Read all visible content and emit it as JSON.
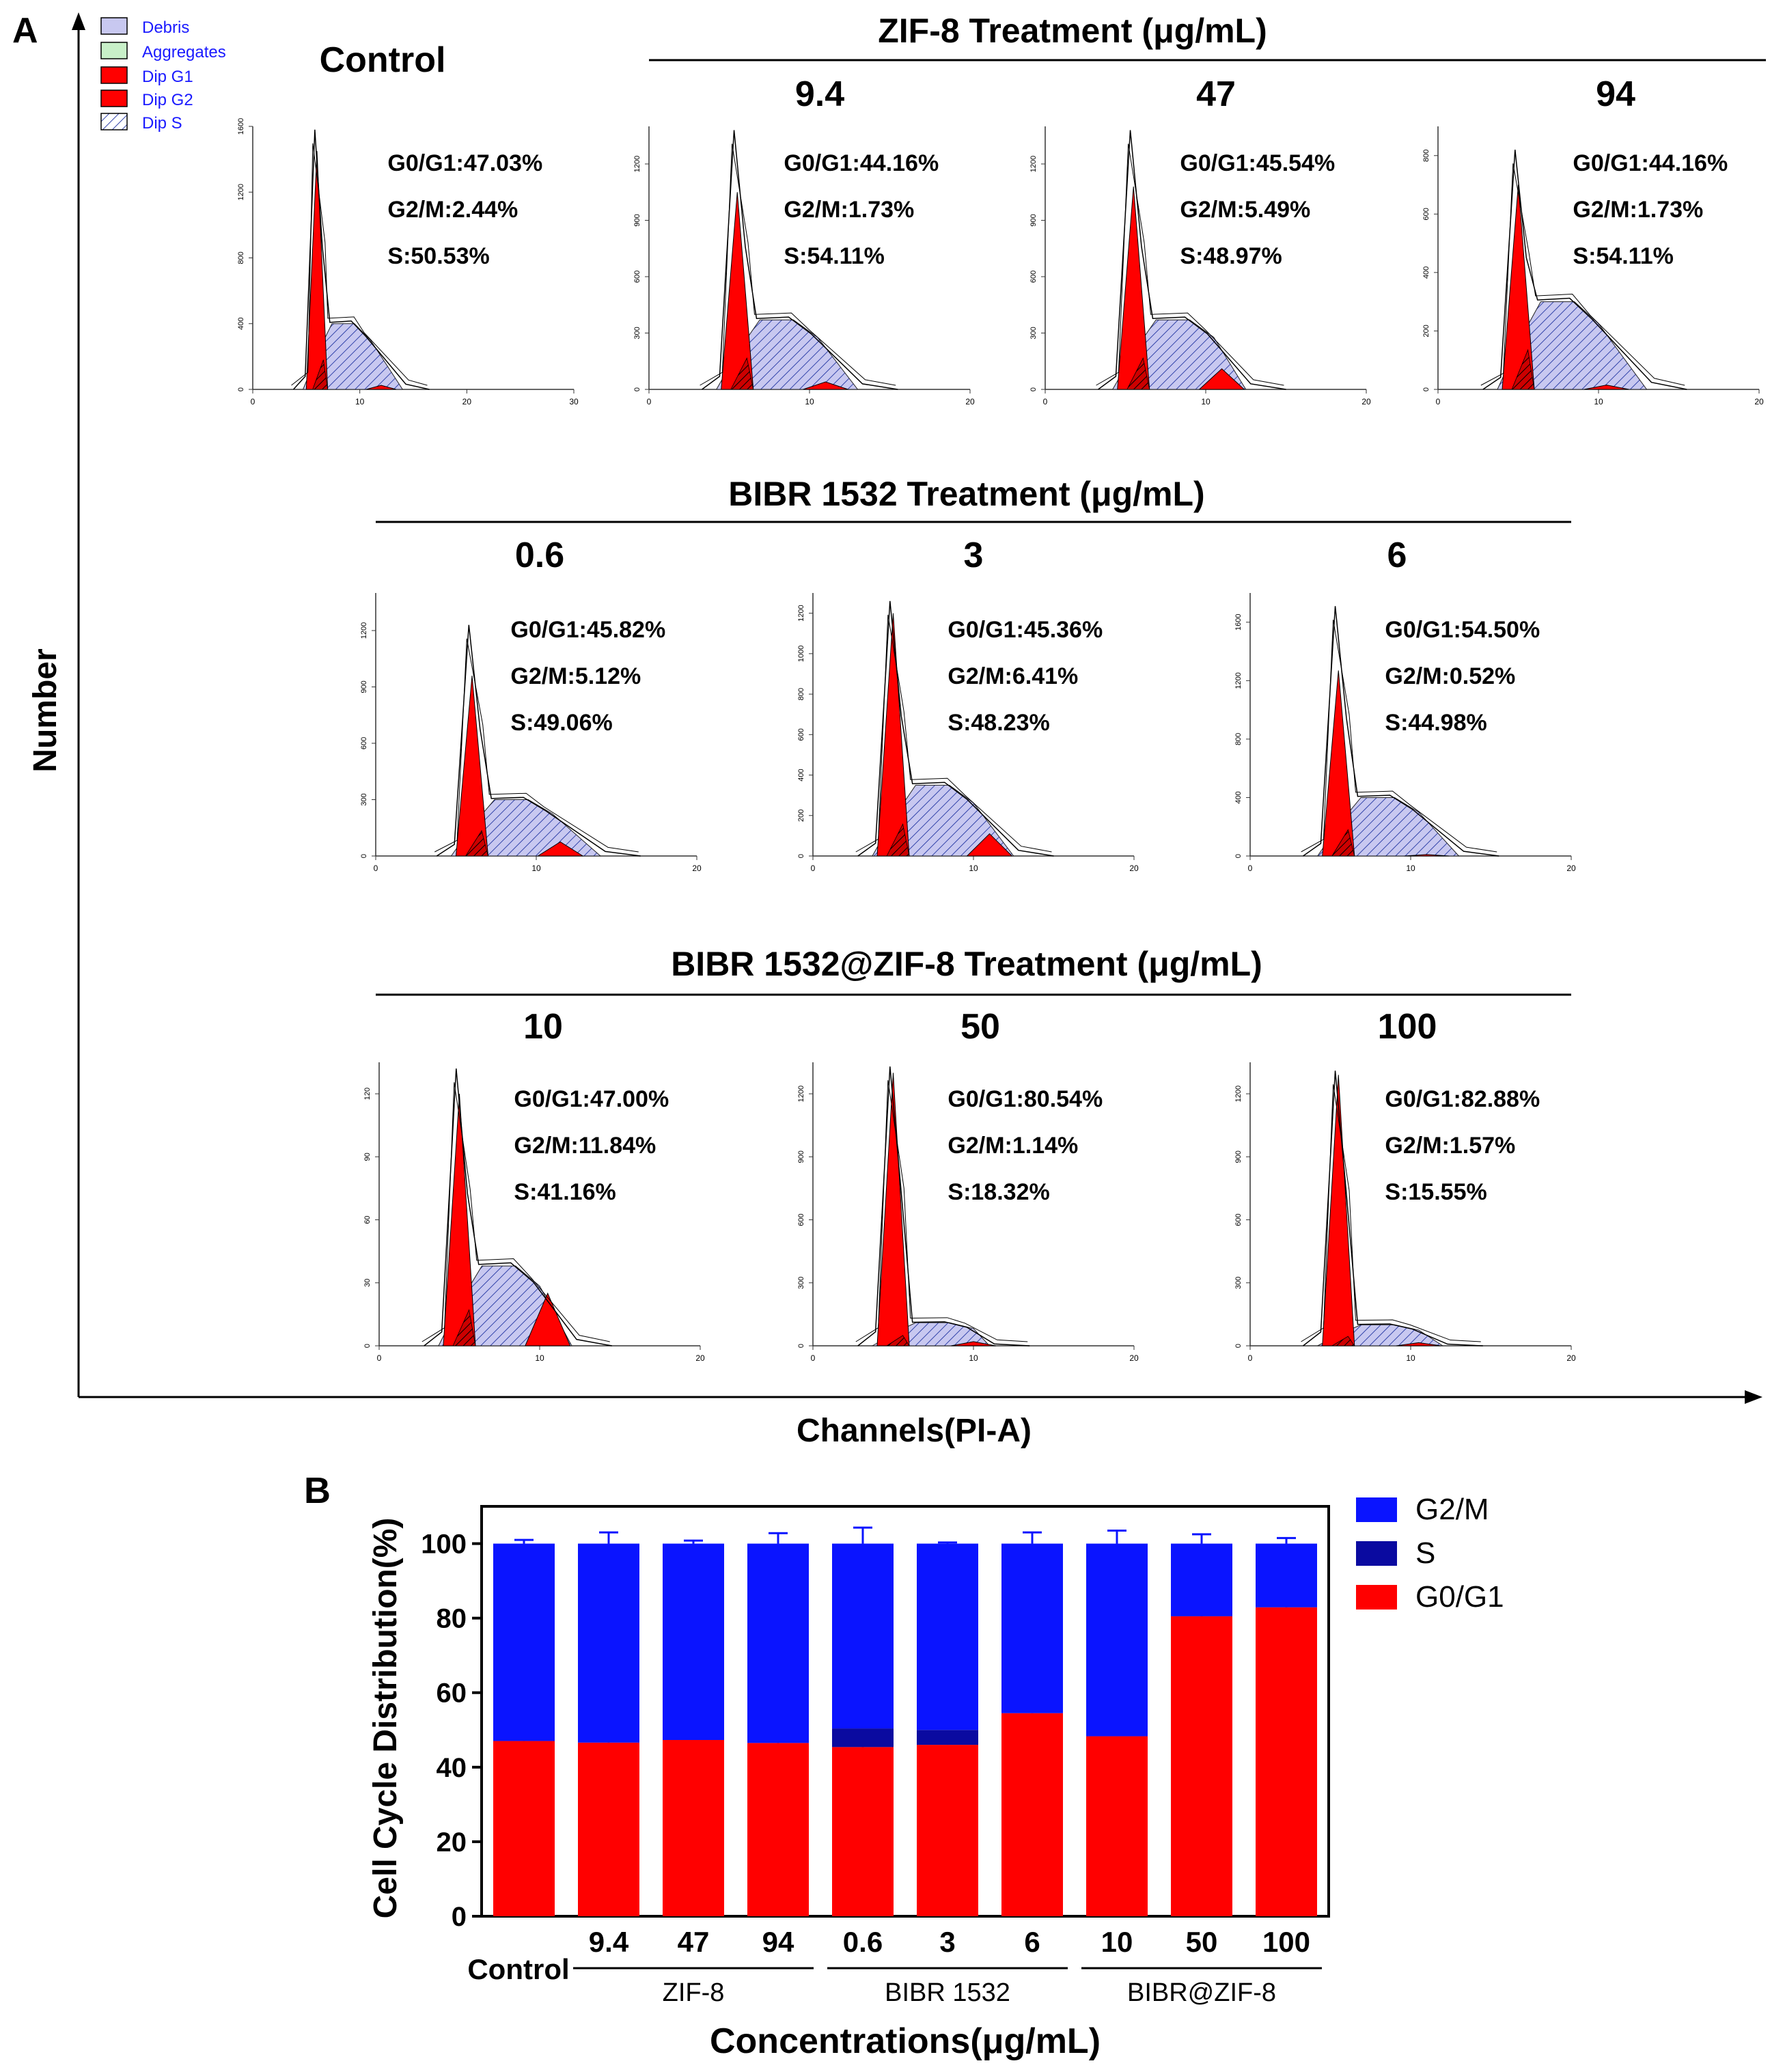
{
  "panel_a": {
    "label": "A",
    "y_axis_label": "Number",
    "x_axis_label": "Channels(PI-A)",
    "legend": {
      "items": [
        {
          "label": "Debris",
          "swatch": "#c8c8f0",
          "pattern": "solid"
        },
        {
          "label": "Aggregates",
          "swatch": "#c8f0c8",
          "pattern": "solid"
        },
        {
          "label": "Dip G1",
          "swatch": "#ff0000",
          "pattern": "solid"
        },
        {
          "label": "Dip G2",
          "swatch": "#ff0000",
          "pattern": "solid"
        },
        {
          "label": "Dip S",
          "swatch": "#ffffff",
          "pattern": "hatch"
        }
      ]
    },
    "group_headers": [
      {
        "text": "ZIF-8 Treatment (μg/mL)"
      },
      {
        "text": "BIBR 1532 Treatment (μg/mL)"
      },
      {
        "text": "BIBR 1532@ZIF-8 Treatment (μg/mL)"
      }
    ]
  },
  "chart_data": [
    {
      "type": "histogram",
      "description": "Flow cytometry cell cycle histograms (panel A)",
      "colors": {
        "g1_g2_fill": "#ff0000",
        "s_fill": "#c8c8f0",
        "s_hatch": "#3344aa"
      },
      "panels": [
        {
          "title": "Control",
          "g0g1": "G0/G1:47.03%",
          "g2m": "G2/M:2.44%",
          "s": "S:50.53%",
          "y_ticks": [
            "0",
            "400",
            "800",
            "1200",
            "1600"
          ],
          "y_max": 1600,
          "x_ticks": [
            "0",
            "10",
            "20",
            "30"
          ],
          "x_max": 30,
          "peak_total": 1580,
          "peak_g1": 1450,
          "g1_center": 6,
          "s_plateau": 400,
          "s_end": 14,
          "g2_center": 12,
          "g2_height": 25
        },
        {
          "title": "9.4",
          "g0g1": "G0/G1:44.16%",
          "g2m": "G2/M:1.73%",
          "s": "S:54.11%",
          "y_ticks": [
            "0",
            "300",
            "600",
            "900",
            "1200"
          ],
          "y_max": 1400,
          "x_ticks": [
            "0",
            "10",
            "20"
          ],
          "x_max": 20,
          "peak_total": 1380,
          "peak_g1": 1050,
          "g1_center": 5.5,
          "s_plateau": 370,
          "s_end": 13,
          "g2_center": 11,
          "g2_height": 40
        },
        {
          "title": "47",
          "g0g1": "G0/G1:45.54%",
          "g2m": "G2/M:5.49%",
          "s": "S:48.97%",
          "y_ticks": [
            "0",
            "300",
            "600",
            "900",
            "1200"
          ],
          "y_max": 1400,
          "x_ticks": [
            "0",
            "10",
            "20"
          ],
          "x_max": 20,
          "peak_total": 1380,
          "peak_g1": 1080,
          "g1_center": 5.5,
          "s_plateau": 370,
          "s_end": 12.5,
          "g2_center": 11,
          "g2_height": 110
        },
        {
          "title": "94",
          "g0g1": "G0/G1:44.16%",
          "g2m": "G2/M:1.73%",
          "s": "S:54.11%",
          "y_ticks": [
            "0",
            "200",
            "400",
            "600",
            "800"
          ],
          "y_max": 900,
          "x_ticks": [
            "0",
            "10",
            "20"
          ],
          "x_max": 20,
          "peak_total": 820,
          "peak_g1": 700,
          "g1_center": 5,
          "s_plateau": 300,
          "s_end": 13,
          "g2_center": 10.5,
          "g2_height": 15
        },
        {
          "title": "0.6",
          "g0g1": "G0/G1:45.82%",
          "g2m": "G2/M:5.12%",
          "s": "S:49.06%",
          "y_ticks": [
            "0",
            "300",
            "600",
            "900",
            "1200"
          ],
          "y_max": 1400,
          "x_ticks": [
            "0",
            "10",
            "20"
          ],
          "x_max": 20,
          "peak_total": 1230,
          "peak_g1": 960,
          "g1_center": 6,
          "s_plateau": 300,
          "s_end": 14,
          "g2_center": 11.5,
          "g2_height": 75
        },
        {
          "title": "3",
          "g0g1": "G0/G1:45.36%",
          "g2m": "G2/M:6.41%",
          "s": "S:48.23%",
          "y_ticks": [
            "0",
            "200",
            "400",
            "600",
            "800",
            "1000",
            "1200"
          ],
          "y_max": 1300,
          "x_ticks": [
            "0",
            "10",
            "20"
          ],
          "x_max": 20,
          "peak_total": 1260,
          "peak_g1": 1200,
          "g1_center": 5,
          "s_plateau": 350,
          "s_end": 12.5,
          "g2_center": 11,
          "g2_height": 110
        },
        {
          "title": "6",
          "g0g1": "G0/G1:54.50%",
          "g2m": "G2/M:0.52%",
          "s": "S:44.98%",
          "y_ticks": [
            "0",
            "400",
            "800",
            "1200",
            "1600"
          ],
          "y_max": 1800,
          "x_ticks": [
            "0",
            "10",
            "20"
          ],
          "x_max": 20,
          "peak_total": 1710,
          "peak_g1": 1270,
          "g1_center": 5.5,
          "s_plateau": 400,
          "s_end": 13,
          "g2_center": 11,
          "g2_height": 10
        },
        {
          "title": "10",
          "g0g1": "G0/G1:47.00%",
          "g2m": "G2/M:11.84%",
          "s": "S:41.16%",
          "y_ticks": [
            "0",
            "30",
            "60",
            "90",
            "120"
          ],
          "y_max": 135,
          "x_ticks": [
            "0",
            "10",
            "20"
          ],
          "x_max": 20,
          "peak_total": 132,
          "peak_g1": 120,
          "g1_center": 5,
          "s_plateau": 38,
          "s_end": 12,
          "g2_center": 10.5,
          "g2_height": 25
        },
        {
          "title": "50",
          "g0g1": "G0/G1:80.54%",
          "g2m": "G2/M:1.14%",
          "s": "S:18.32%",
          "y_ticks": [
            "0",
            "300",
            "600",
            "900",
            "1200"
          ],
          "y_max": 1350,
          "x_ticks": [
            "0",
            "10",
            "20"
          ],
          "x_max": 20,
          "peak_total": 1330,
          "peak_g1": 1300,
          "g1_center": 5,
          "s_plateau": 110,
          "s_end": 11,
          "g2_center": 10,
          "g2_height": 20
        },
        {
          "title": "100",
          "g0g1": "G0/G1:82.88%",
          "g2m": "G2/M:1.57%",
          "s": "S:15.55%",
          "y_ticks": [
            "0",
            "300",
            "600",
            "900",
            "1200"
          ],
          "y_max": 1350,
          "x_ticks": [
            "0",
            "10",
            "20"
          ],
          "x_max": 20,
          "peak_total": 1310,
          "peak_g1": 1290,
          "g1_center": 5.5,
          "s_plateau": 100,
          "s_end": 12,
          "g2_center": 10.5,
          "g2_height": 15
        }
      ]
    },
    {
      "type": "bar",
      "stacked": true,
      "label": "B",
      "ylabel": "Cell Cycle Distribution(%)",
      "xlabel": "Concentrations(μg/mL)",
      "ylim": [
        0,
        110
      ],
      "y_ticks": [
        "0",
        "20",
        "40",
        "60",
        "80",
        "100"
      ],
      "categories": [
        "Control",
        "9.4",
        "47",
        "94",
        "0.6",
        "3",
        "6",
        "10",
        "50",
        "100"
      ],
      "groups": [
        {
          "label": "ZIF-8",
          "members": [
            "9.4",
            "47",
            "94"
          ]
        },
        {
          "label": "BIBR 1532",
          "members": [
            "0.6",
            "3",
            "6"
          ]
        },
        {
          "label": "BIBR@ZIF-8",
          "members": [
            "10",
            "50",
            "100"
          ]
        }
      ],
      "series": [
        {
          "name": "G0/G1",
          "color": "#ff0000",
          "err_color": "#dd0000",
          "values": [
            47.03,
            46.6,
            47.3,
            46.5,
            45.4,
            46.0,
            54.5,
            48.3,
            80.5,
            82.9
          ],
          "errors": [
            1.7,
            2.7,
            2.3,
            2.3,
            3.5,
            0.7,
            2.8,
            4.5,
            2.0,
            2.0
          ]
        },
        {
          "name": "S",
          "color": "#0a0aa0",
          "values": [
            0.0,
            0.0,
            0.0,
            0.0,
            5.0,
            4.0,
            0.0,
            0.0,
            0.0,
            0.0
          ],
          "errors": [
            0,
            0,
            0,
            0,
            0,
            0,
            0,
            0,
            0,
            0
          ]
        },
        {
          "name": "G2/M",
          "color": "#0a14ff",
          "err_color": "#0a14ff",
          "values": [
            52.97,
            53.4,
            52.7,
            53.5,
            49.6,
            50.0,
            45.5,
            51.7,
            19.5,
            17.1
          ],
          "errors": [
            1.0,
            3.0,
            0.8,
            2.8,
            4.3,
            0.3,
            3.0,
            3.5,
            2.5,
            1.5
          ]
        }
      ],
      "legend": [
        "G2/M",
        "S",
        "G0/G1"
      ]
    }
  ]
}
